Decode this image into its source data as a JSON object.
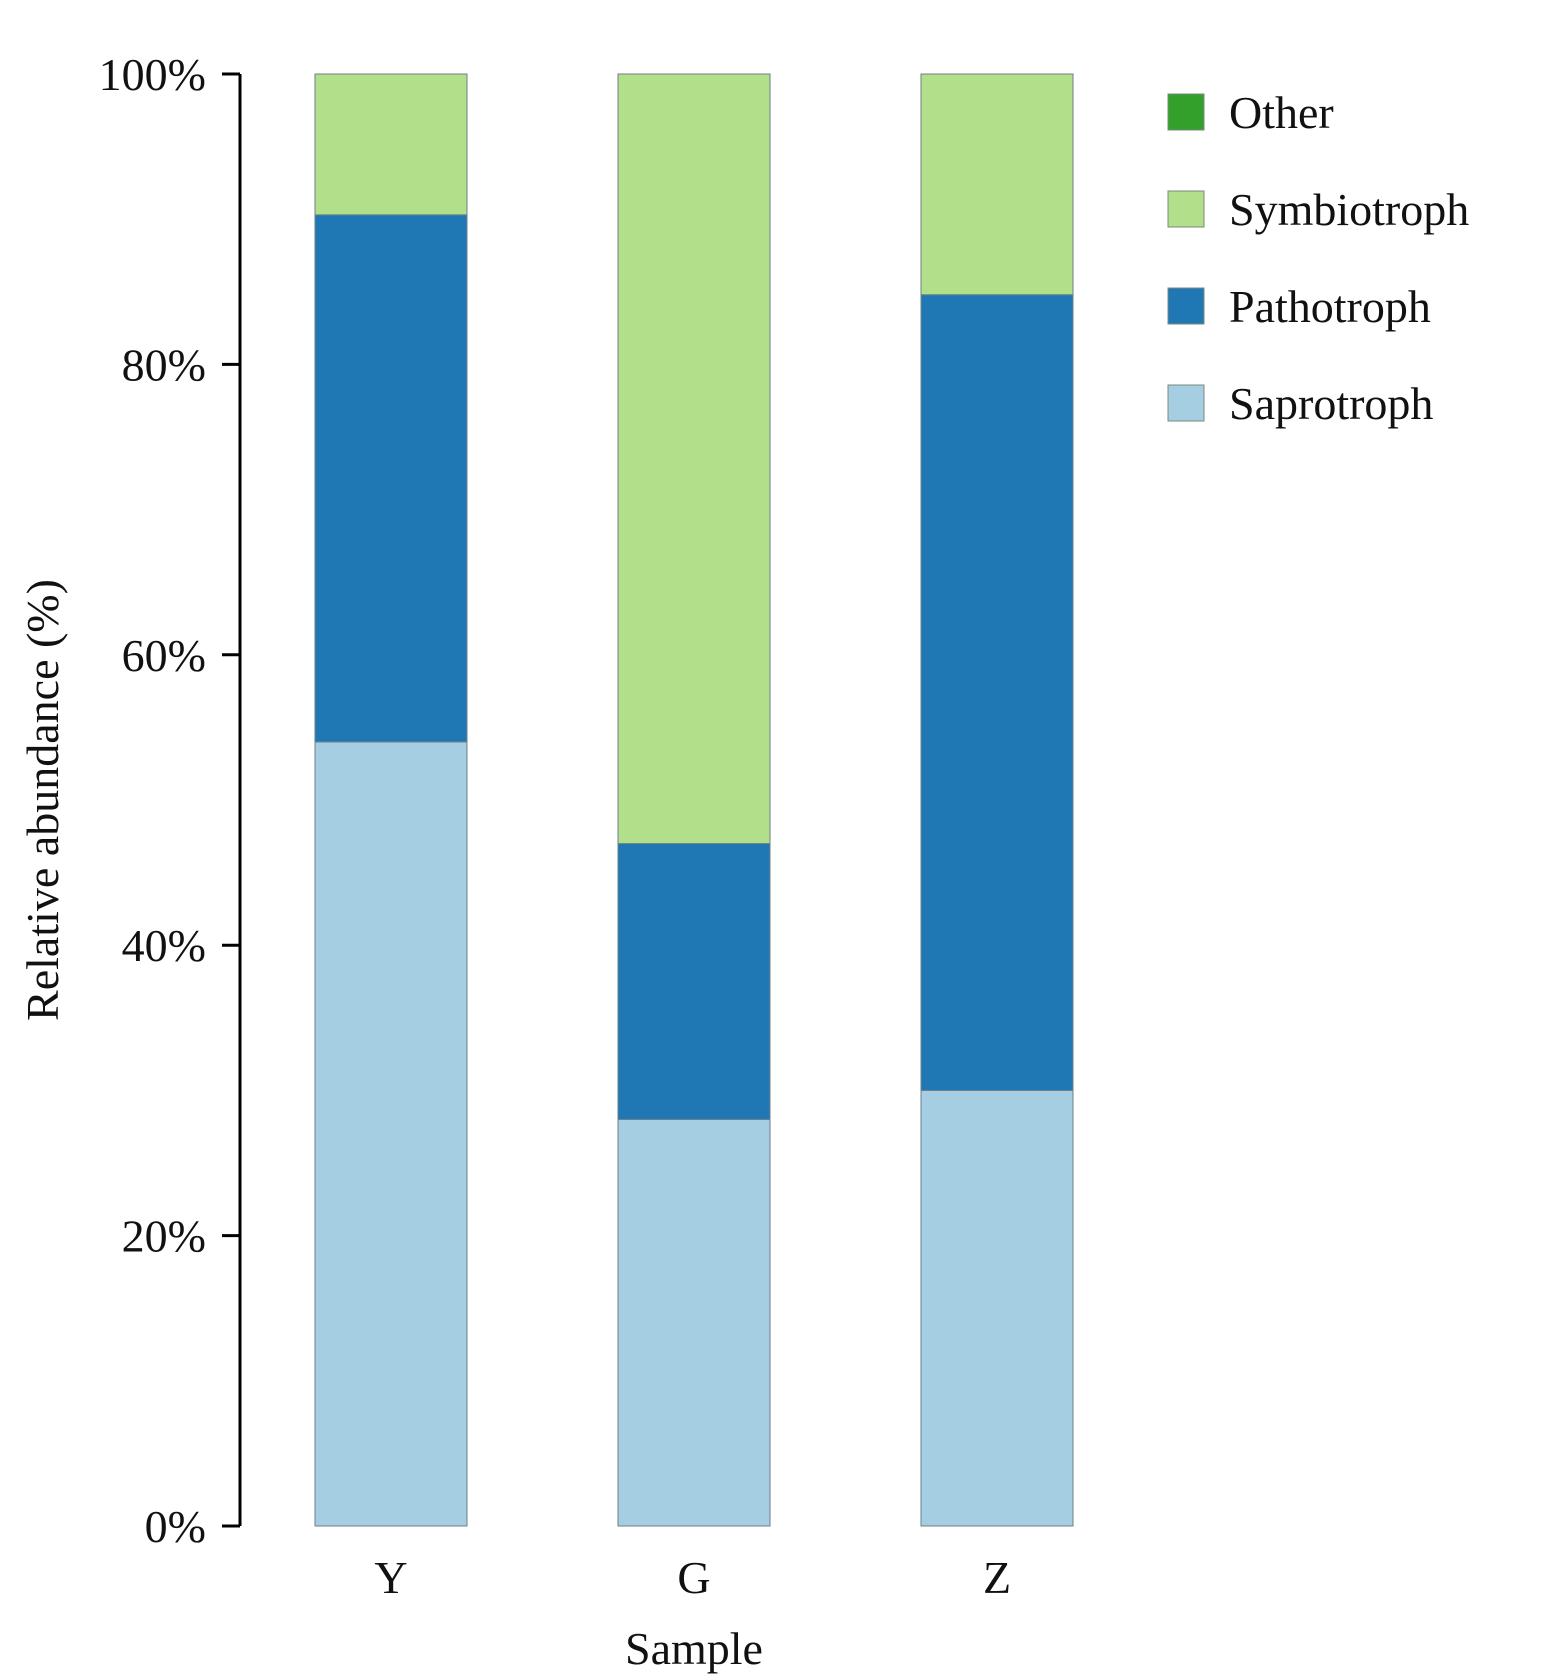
{
  "chart_data": {
    "type": "bar",
    "stacked": true,
    "title": "",
    "xlabel": "Sample",
    "ylabel": "Relative abundance (%)",
    "ylim": [
      0,
      100
    ],
    "yticks": [
      0,
      20,
      40,
      60,
      80,
      100
    ],
    "ytick_labels": [
      "0%",
      "20%",
      "40%",
      "60%",
      "80%",
      "100%"
    ],
    "categories": [
      "Y",
      "G",
      "Z"
    ],
    "series": [
      {
        "name": "Saprotroph",
        "color": "#a6cee3",
        "values": [
          54.0,
          28.0,
          30.0
        ]
      },
      {
        "name": "Pathotroph",
        "color": "#1f78b4",
        "values": [
          36.3,
          19.0,
          54.8
        ]
      },
      {
        "name": "Symbiotroph",
        "color": "#b2df8a",
        "values": [
          9.7,
          53.0,
          15.2
        ]
      },
      {
        "name": "Other",
        "color": "#33a02c",
        "values": [
          0,
          0,
          0
        ]
      }
    ],
    "legend": {
      "position": "top-right",
      "order": [
        "Other",
        "Symbiotroph",
        "Pathotroph",
        "Saprotroph"
      ]
    },
    "grid": false
  }
}
